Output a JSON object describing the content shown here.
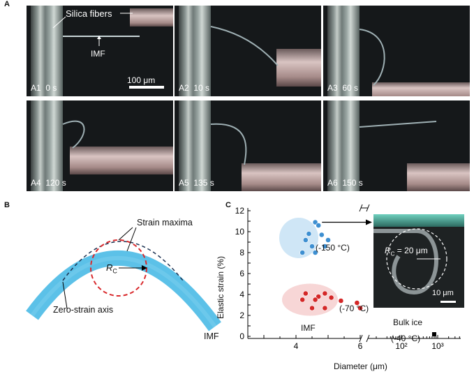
{
  "panel_a": {
    "label": "A",
    "silica_label": "Silica fibers",
    "imf_label": "IMF",
    "scale_label": "100 μm",
    "frames": [
      {
        "id": "A1",
        "time": "0 s"
      },
      {
        "id": "A2",
        "time": "10 s"
      },
      {
        "id": "A3",
        "time": "60 s"
      },
      {
        "id": "A4",
        "time": "120 s"
      },
      {
        "id": "A5",
        "time": "135 s"
      },
      {
        "id": "A6",
        "time": "150 s"
      }
    ]
  },
  "panel_b": {
    "label": "B",
    "strain_maxima": "Strain maxima",
    "rc_main": "R",
    "rc_sub": "C",
    "zero_axis": "Zero-strain axis",
    "imf": "IMF",
    "colors": {
      "fiber": "#5cc1e8",
      "axis": "#1a3050",
      "circle": "#d9292c"
    }
  },
  "panel_c": {
    "label": "C",
    "ylabel": "Elastic strain (%)",
    "xlabel": "Diameter (μm)",
    "group_150": "(-150 °C)",
    "group_70": "(-70 °C)",
    "imf": "IMF",
    "bulk_ice": "Bulk ice",
    "bulk_temp": "(-40 °C)",
    "inset_rc_main": "R",
    "inset_rc_sub": "C",
    "inset_rc_val": " = 20 μm",
    "inset_scale": "10 μm",
    "colors": {
      "blue": "#3d8fd1",
      "red": "#d42727",
      "blue_bg": "#cfe6f6",
      "red_bg": "#f7d6d6"
    }
  },
  "chart_data": {
    "type": "scatter",
    "xlabel": "Diameter (μm)",
    "ylabel": "Elastic strain (%)",
    "ylim": [
      0,
      12
    ],
    "yticks": [
      "0",
      "1",
      "2",
      "3",
      "4",
      "5",
      "6",
      "7",
      "8",
      "9",
      "10",
      "11",
      "12"
    ],
    "xticks_linear": [
      "4",
      "6"
    ],
    "xticks_log": [
      "10²",
      "10³"
    ],
    "series": [
      {
        "color": "#3d8fd1",
        "points": [
          [
            4.6,
            10.9
          ],
          [
            4.7,
            10.6
          ],
          [
            4.4,
            9.8
          ],
          [
            4.8,
            9.7
          ],
          [
            4.3,
            9.2
          ],
          [
            5.0,
            9.2
          ],
          [
            4.5,
            8.6
          ],
          [
            4.9,
            8.6
          ],
          [
            4.2,
            8.0
          ],
          [
            4.6,
            8.0
          ]
        ]
      },
      {
        "color": "#d42727",
        "points": [
          [
            4.3,
            4.1
          ],
          [
            4.9,
            4.1
          ],
          [
            4.7,
            3.8
          ],
          [
            5.1,
            3.7
          ],
          [
            4.2,
            3.5
          ],
          [
            4.6,
            3.5
          ],
          [
            5.4,
            3.4
          ],
          [
            5.9,
            3.2
          ],
          [
            4.5,
            2.7
          ],
          [
            4.9,
            2.7
          ],
          [
            6.0,
            2.7
          ]
        ]
      },
      {
        "color": "#000000",
        "points": [
          [
            800,
            0.2
          ]
        ]
      }
    ]
  }
}
